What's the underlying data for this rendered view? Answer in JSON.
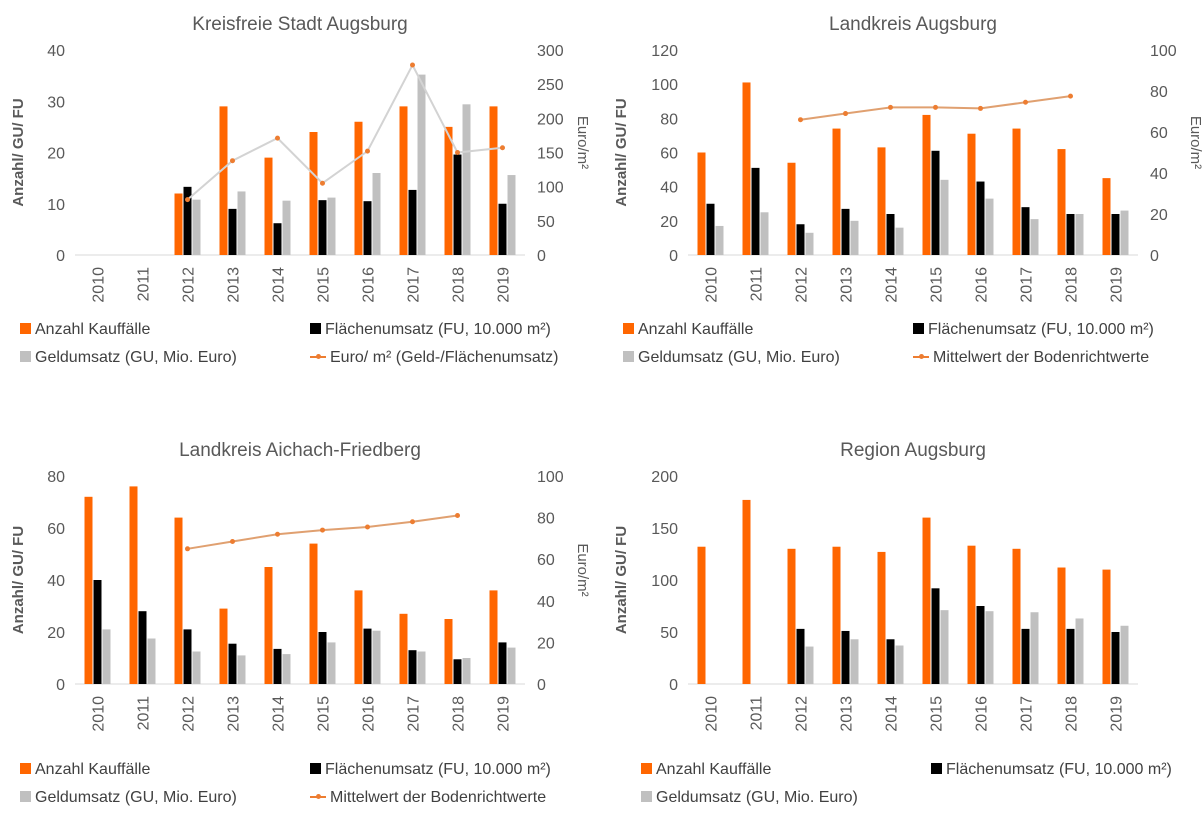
{
  "colors": {
    "kauf": "#ff6600",
    "flaeche": "#000000",
    "geld": "#c0c0c0",
    "euro_line": "#d3d3d3",
    "euro_marker": "#ed7d31",
    "mittel_line": "#e0a070",
    "mittel_marker": "#ed7d31",
    "axis_text": "#595959"
  },
  "chart_data": [
    {
      "id": "c0",
      "type": "bar",
      "title": "Kreisfreie Stadt Augsburg",
      "ylabel": "Anzahl/ GU/ FU",
      "y2label": "Euro/m²",
      "categories": [
        "2010",
        "2011",
        "2012",
        "2013",
        "2014",
        "2015",
        "2016",
        "2017",
        "2018",
        "2019"
      ],
      "ylim": [
        0,
        40
      ],
      "yticks": [
        0,
        10,
        20,
        30,
        40
      ],
      "y2lim": [
        0,
        300
      ],
      "y2ticks": [
        0,
        50,
        100,
        150,
        200,
        250,
        300
      ],
      "series": [
        {
          "name": "Anzahl Kauffälle",
          "color_key": "kauf",
          "values": [
            null,
            null,
            12,
            29,
            19,
            24,
            26,
            29,
            25,
            29
          ]
        },
        {
          "name": "Flächenumsatz (FU, 10.000 m²)",
          "color_key": "flaeche",
          "values": [
            null,
            null,
            13.3,
            9,
            6.2,
            10.7,
            10.5,
            12.7,
            19.6,
            10
          ]
        },
        {
          "name": "Geldumsatz (GU, Mio. Euro)",
          "color_key": "geld",
          "values": [
            null,
            null,
            10.8,
            12.4,
            10.6,
            11.2,
            16,
            35.2,
            29.4,
            15.6
          ]
        }
      ],
      "line": {
        "name": "Euro/ m² (Geld-/Flächenumsatz)",
        "line_color_key": "euro_line",
        "marker_color_key": "euro_marker",
        "values": [
          null,
          null,
          81,
          138,
          171,
          105,
          152,
          278,
          150,
          157
        ]
      },
      "legend": [
        {
          "label": "Anzahl Kauffälle",
          "color_key": "kauf",
          "kind": "bar"
        },
        {
          "label": "Flächenumsatz (FU, 10.000 m²)",
          "color_key": "flaeche",
          "kind": "bar"
        },
        {
          "label": "Geldumsatz (GU, Mio. Euro)",
          "color_key": "geld",
          "kind": "bar"
        },
        {
          "label": "Euro/ m² (Geld-/Flächenumsatz)",
          "color_key": "euro_marker",
          "kind": "line"
        }
      ]
    },
    {
      "id": "c1",
      "type": "bar",
      "title": "Landkreis Augsburg",
      "ylabel": "Anzahl/ GU/ FU",
      "y2label": "Euro/m²",
      "categories": [
        "2010",
        "2011",
        "2012",
        "2013",
        "2014",
        "2015",
        "2016",
        "2017",
        "2018",
        "2019"
      ],
      "ylim": [
        0,
        120
      ],
      "yticks": [
        0,
        20,
        40,
        60,
        80,
        100,
        120
      ],
      "y2lim": [
        0,
        100
      ],
      "y2ticks": [
        0,
        20,
        40,
        60,
        80,
        100
      ],
      "series": [
        {
          "name": "Anzahl Kauffälle",
          "color_key": "kauf",
          "values": [
            60,
            101,
            54,
            74,
            63,
            82,
            71,
            74,
            62,
            45
          ]
        },
        {
          "name": "Flächenumsatz (FU, 10.000 m²)",
          "color_key": "flaeche",
          "values": [
            30,
            51,
            18,
            27,
            24,
            61,
            43,
            28,
            24,
            24
          ]
        },
        {
          "name": "Geldumsatz (GU, Mio. Euro)",
          "color_key": "geld",
          "values": [
            17,
            25,
            13,
            20,
            16,
            44,
            33,
            21,
            24,
            26
          ]
        }
      ],
      "line": {
        "name": "Mittelwert der Bodenrichtwerte",
        "line_color_key": "mittel_line",
        "marker_color_key": "mittel_marker",
        "values": [
          null,
          null,
          66,
          69,
          72,
          72,
          71.5,
          74.5,
          77.5,
          null
        ]
      },
      "legend": [
        {
          "label": "Anzahl Kauffälle",
          "color_key": "kauf",
          "kind": "bar"
        },
        {
          "label": "Flächenumsatz (FU, 10.000 m²)",
          "color_key": "flaeche",
          "kind": "bar"
        },
        {
          "label": "Geldumsatz (GU, Mio. Euro)",
          "color_key": "geld",
          "kind": "bar"
        },
        {
          "label": "Mittelwert der Bodenrichtwerte",
          "color_key": "mittel_marker",
          "kind": "line"
        }
      ]
    },
    {
      "id": "c2",
      "type": "bar",
      "title": "Landkreis Aichach-Friedberg",
      "ylabel": "Anzahl/ GU/ FU",
      "y2label": "Euro/m²",
      "categories": [
        "2010",
        "2011",
        "2012",
        "2013",
        "2014",
        "2015",
        "2016",
        "2017",
        "2018",
        "2019"
      ],
      "ylim": [
        0,
        80
      ],
      "yticks": [
        0,
        20,
        40,
        60,
        80
      ],
      "y2lim": [
        0,
        100
      ],
      "y2ticks": [
        0,
        20,
        40,
        60,
        80,
        100
      ],
      "series": [
        {
          "name": "Anzahl Kauffälle",
          "color_key": "kauf",
          "values": [
            72,
            76,
            64,
            29,
            45,
            54,
            36,
            27,
            25,
            36
          ]
        },
        {
          "name": "Flächenumsatz (FU, 10.000 m²)",
          "color_key": "flaeche",
          "values": [
            40,
            28,
            21,
            15.5,
            13.5,
            20,
            21.3,
            13,
            9.5,
            16
          ]
        },
        {
          "name": "Geldumsatz (GU, Mio. Euro)",
          "color_key": "geld",
          "values": [
            21,
            17.5,
            12.5,
            11,
            11.5,
            16,
            20.5,
            12.5,
            10,
            14
          ]
        }
      ],
      "line": {
        "name": "Mittelwert der Bodenrichtwerte",
        "line_color_key": "mittel_line",
        "marker_color_key": "mittel_marker",
        "values": [
          null,
          null,
          65,
          68.5,
          72,
          74,
          75.5,
          78,
          81,
          null
        ]
      },
      "legend": [
        {
          "label": "Anzahl Kauffälle",
          "color_key": "kauf",
          "kind": "bar"
        },
        {
          "label": "Flächenumsatz (FU, 10.000 m²)",
          "color_key": "flaeche",
          "kind": "bar"
        },
        {
          "label": "Geldumsatz (GU, Mio. Euro)",
          "color_key": "geld",
          "kind": "bar"
        },
        {
          "label": "Mittelwert der Bodenrichtwerte",
          "color_key": "mittel_marker",
          "kind": "line"
        }
      ]
    },
    {
      "id": "c3",
      "type": "bar",
      "title": "Region Augsburg",
      "ylabel": "Anzahl/ GU/ FU",
      "y2label": "",
      "categories": [
        "2010",
        "2011",
        "2012",
        "2013",
        "2014",
        "2015",
        "2016",
        "2017",
        "2018",
        "2019"
      ],
      "ylim": [
        0,
        200
      ],
      "yticks": [
        0,
        50,
        100,
        150,
        200
      ],
      "series": [
        {
          "name": "Anzahl Kauffälle",
          "color_key": "kauf",
          "values": [
            132,
            177,
            130,
            132,
            127,
            160,
            133,
            130,
            112,
            110
          ]
        },
        {
          "name": "Flächenumsatz (FU, 10.000 m²)",
          "color_key": "flaeche",
          "values": [
            null,
            null,
            53,
            51,
            43,
            92,
            75,
            53,
            53,
            50
          ]
        },
        {
          "name": "Geldumsatz (GU, Mio. Euro)",
          "color_key": "geld",
          "values": [
            null,
            null,
            36,
            43,
            37,
            71,
            70,
            69,
            63,
            56
          ]
        }
      ],
      "line": null,
      "legend": [
        {
          "label": "Anzahl Kauffälle",
          "color_key": "kauf",
          "kind": "bar"
        },
        {
          "label": "Flächenumsatz (FU, 10.000 m²)",
          "color_key": "flaeche",
          "kind": "bar"
        },
        {
          "label": "Geldumsatz (GU, Mio. Euro)",
          "color_key": "geld",
          "kind": "bar"
        }
      ]
    }
  ]
}
